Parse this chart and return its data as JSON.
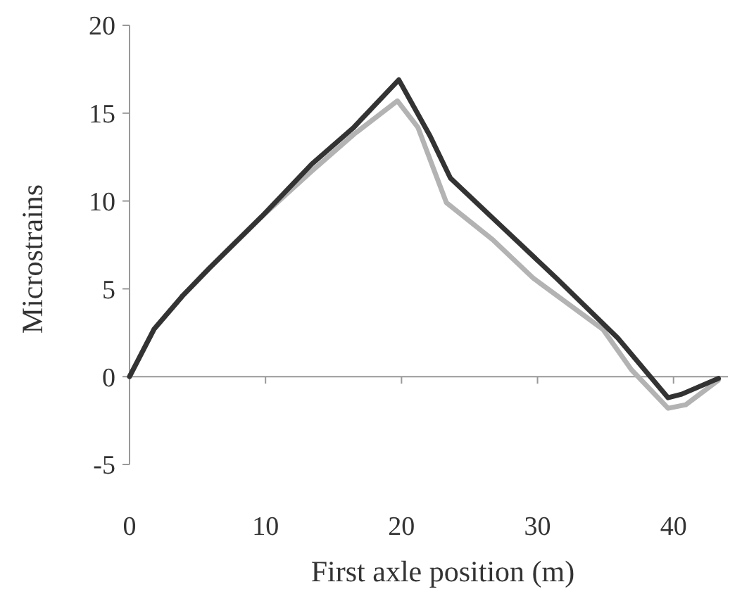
{
  "chart_data": {
    "type": "line",
    "xlabel": "First axle position (m)",
    "ylabel": "Microstrains",
    "xlim": [
      0,
      44
    ],
    "xticks": [
      0,
      10,
      20,
      30,
      40
    ],
    "ylim": [
      -5,
      20
    ],
    "yticks": [
      -5,
      0,
      5,
      10,
      15,
      20
    ],
    "line_style": "solid",
    "series": [
      {
        "color": "#b3b3b3",
        "x": [
          0,
          1.8,
          3.9,
          5.9,
          9.7,
          13.4,
          16.5,
          19.7,
          21.2,
          23.3,
          26.7,
          29.7,
          34.8,
          36.9,
          39.6,
          40.9,
          43.3
        ],
        "values": [
          0,
          2.7,
          4.6,
          6.2,
          9.1,
          11.7,
          13.8,
          15.7,
          14.2,
          9.9,
          7.8,
          5.6,
          2.7,
          0.4,
          -1.8,
          -1.6,
          -0.2
        ]
      },
      {
        "color": "#333333",
        "x": [
          0,
          1.8,
          3.9,
          5.9,
          9.7,
          13.4,
          16.5,
          19.8,
          22.1,
          23.6,
          27.7,
          31.4,
          35.9,
          39.6,
          40.6,
          43.3
        ],
        "values": [
          0,
          2.7,
          4.6,
          6.2,
          9.1,
          12.1,
          14.2,
          16.9,
          13.7,
          11.3,
          8.3,
          5.6,
          2.2,
          -1.2,
          -1.0,
          -0.1
        ]
      }
    ]
  }
}
